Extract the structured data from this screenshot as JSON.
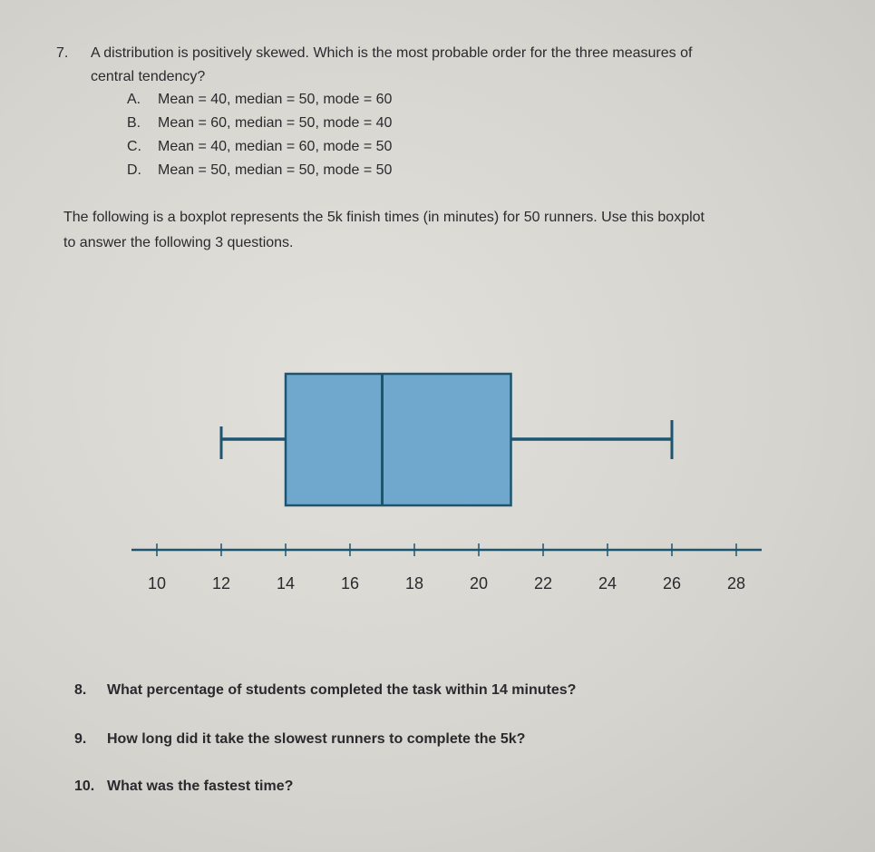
{
  "q7": {
    "number": "7.",
    "text_line1": "A distribution is positively skewed. Which is the most probable order for the three measures of",
    "text_line2": "central tendency?",
    "options": [
      {
        "letter": "A.",
        "text": "Mean = 40, median = 50, mode = 60"
      },
      {
        "letter": "B.",
        "text": "Mean = 60, median = 50, mode = 40"
      },
      {
        "letter": "C.",
        "text": "Mean = 40, median = 60, mode = 50"
      },
      {
        "letter": "D.",
        "text": "Mean = 50, median = 50, mode = 50"
      }
    ]
  },
  "intro": {
    "line1": "The following is a boxplot represents the 5k finish times (in minutes) for 50 runners. Use this boxplot",
    "line2": "to answer the following 3 questions."
  },
  "chart_data": {
    "type": "boxplot",
    "min": 12,
    "q1": 14,
    "median": 17,
    "q3": 21,
    "max": 26,
    "xlim": [
      10,
      28
    ],
    "tick_labels": [
      "10",
      "12",
      "14",
      "16",
      "18",
      "20",
      "22",
      "24",
      "26",
      "28"
    ],
    "box_color": "#6fa8cc",
    "line_color": "#1d5570"
  },
  "questions": [
    {
      "number": "8.",
      "text": "What percentage of students completed the task within 14 minutes?"
    },
    {
      "number": "9.",
      "text": "How long did it take the slowest runners to complete the 5k?"
    },
    {
      "number": "10.",
      "text": "What was the fastest time?"
    }
  ]
}
